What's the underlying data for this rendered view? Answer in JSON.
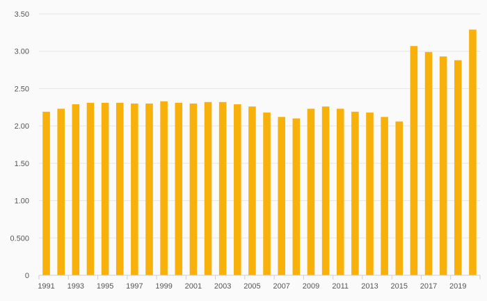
{
  "chart_data": {
    "type": "bar",
    "title": "",
    "xlabel": "",
    "ylabel": "",
    "grid": true,
    "legend": "none",
    "bar_color": "#f8b10a",
    "ylim": [
      0,
      3.5
    ],
    "y_ticks": [
      {
        "value": 0,
        "label": "0"
      },
      {
        "value": 0.5,
        "label": "0.500"
      },
      {
        "value": 1.0,
        "label": "1.00"
      },
      {
        "value": 1.5,
        "label": "1.50"
      },
      {
        "value": 2.0,
        "label": "2.00"
      },
      {
        "value": 2.5,
        "label": "2.50"
      },
      {
        "value": 3.0,
        "label": "3.00"
      },
      {
        "value": 3.5,
        "label": "3.50"
      }
    ],
    "categories": [
      "1991",
      "1992",
      "1993",
      "1994",
      "1995",
      "1996",
      "1997",
      "1998",
      "1999",
      "2000",
      "2001",
      "2002",
      "2003",
      "2004",
      "2005",
      "2006",
      "2007",
      "2008",
      "2009",
      "2010",
      "2011",
      "2012",
      "2013",
      "2014",
      "2015",
      "2016",
      "2017",
      "2018",
      "2019",
      "2020"
    ],
    "x_tick_labels": [
      "1991",
      "1993",
      "1995",
      "1997",
      "1999",
      "2001",
      "2003",
      "2005",
      "2007",
      "2009",
      "2011",
      "2013",
      "2015",
      "2017",
      "2019"
    ],
    "values": [
      2.19,
      2.23,
      2.29,
      2.31,
      2.31,
      2.31,
      2.3,
      2.3,
      2.33,
      2.31,
      2.3,
      2.32,
      2.32,
      2.29,
      2.26,
      2.18,
      2.12,
      2.1,
      2.23,
      2.26,
      2.23,
      2.19,
      2.18,
      2.12,
      2.06,
      3.07,
      2.99,
      2.93,
      2.88,
      3.29
    ]
  }
}
